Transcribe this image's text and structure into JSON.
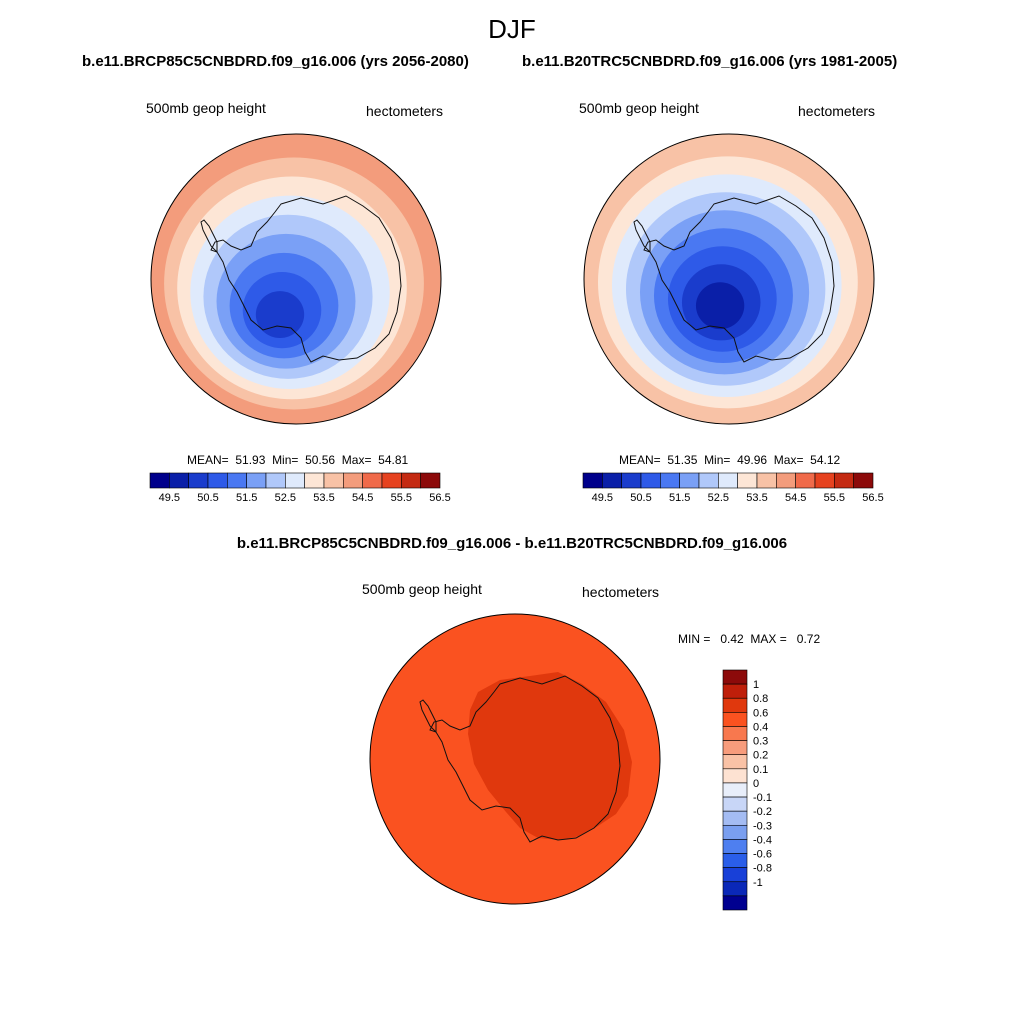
{
  "figure": {
    "title": "DJF",
    "variable_label": "500mb geop height",
    "units_label": "hectometers"
  },
  "panels": [
    {
      "title": "b.e11.BRCP85C5CNBDRD.f09_g16.006 (yrs 2056-2080)",
      "variable_label": "500mb geop height",
      "units_label": "hectometers",
      "stats": {
        "mean_label": "MEAN=",
        "mean": "51.93",
        "min_label": "Min=",
        "min": "50.56",
        "max_label": "Max=",
        "max": "54.81"
      }
    },
    {
      "title": "b.e11.B20TRC5CNBDRD.f09_g16.006 (yrs 1981-2005)",
      "variable_label": "500mb geop height",
      "units_label": "hectometers",
      "stats": {
        "mean_label": "MEAN=",
        "mean": "51.35",
        "min_label": "Min=",
        "min": "49.96",
        "max_label": "Max=",
        "max": "54.12"
      }
    }
  ],
  "difference": {
    "title": "b.e11.BRCP85C5CNBDRD.f09_g16.006 - b.e11.B20TRC5CNBDRD.f09_g16.006",
    "variable_label": "500mb geop height",
    "units_label": "hectometers",
    "stats": {
      "min_label": "MIN =",
      "min": "0.42",
      "max_label": "MAX =",
      "max": "0.72"
    }
  },
  "colorbars": {
    "absolute": {
      "colors": [
        "#00008b",
        "#0a1fa8",
        "#1a3ccc",
        "#2e5ae8",
        "#4a78f2",
        "#7aa0f6",
        "#b0c8fa",
        "#dfeafc",
        "#fde6d6",
        "#f8c2a6",
        "#f39c7c",
        "#f06a4a",
        "#e6421f",
        "#c42a12",
        "#8c0a0a"
      ],
      "labels": [
        "49.5",
        "50.5",
        "51.5",
        "52.5",
        "53.5",
        "54.5",
        "55.5",
        "56.5"
      ]
    },
    "difference": {
      "colors": [
        "#8c0a0a",
        "#bf1f0a",
        "#e0380d",
        "#fa5220",
        "#f8784e",
        "#f79c7c",
        "#f9c2a6",
        "#fde2d2",
        "#e8eefa",
        "#c8d6f7",
        "#a4bcf3",
        "#7a9ff0",
        "#4e7ff0",
        "#2a5ee9",
        "#1840d8",
        "#0a28b8",
        "#000090"
      ],
      "labels": [
        "1",
        "0.8",
        "0.6",
        "0.4",
        "0.3",
        "0.2",
        "0.1",
        "0",
        "-0.1",
        "-0.2",
        "-0.3",
        "-0.4",
        "-0.6",
        "-0.8",
        "-1"
      ]
    }
  },
  "map_colors": {
    "rcp85_rings": [
      "#f39c7c",
      "#f8c2a6",
      "#fde6d6",
      "#dfeafc",
      "#b0c8fa",
      "#7aa0f6",
      "#4a78f2",
      "#2e5ae8",
      "#1a3ccc"
    ],
    "hist_rings": [
      "#f8c2a6",
      "#fde6d6",
      "#dfeafc",
      "#b0c8fa",
      "#7aa0f6",
      "#4a78f2",
      "#2e5ae8",
      "#1a3ccc",
      "#0a1fa8"
    ],
    "diff_outer": "#fa5220",
    "diff_inner": "#e0380d"
  }
}
